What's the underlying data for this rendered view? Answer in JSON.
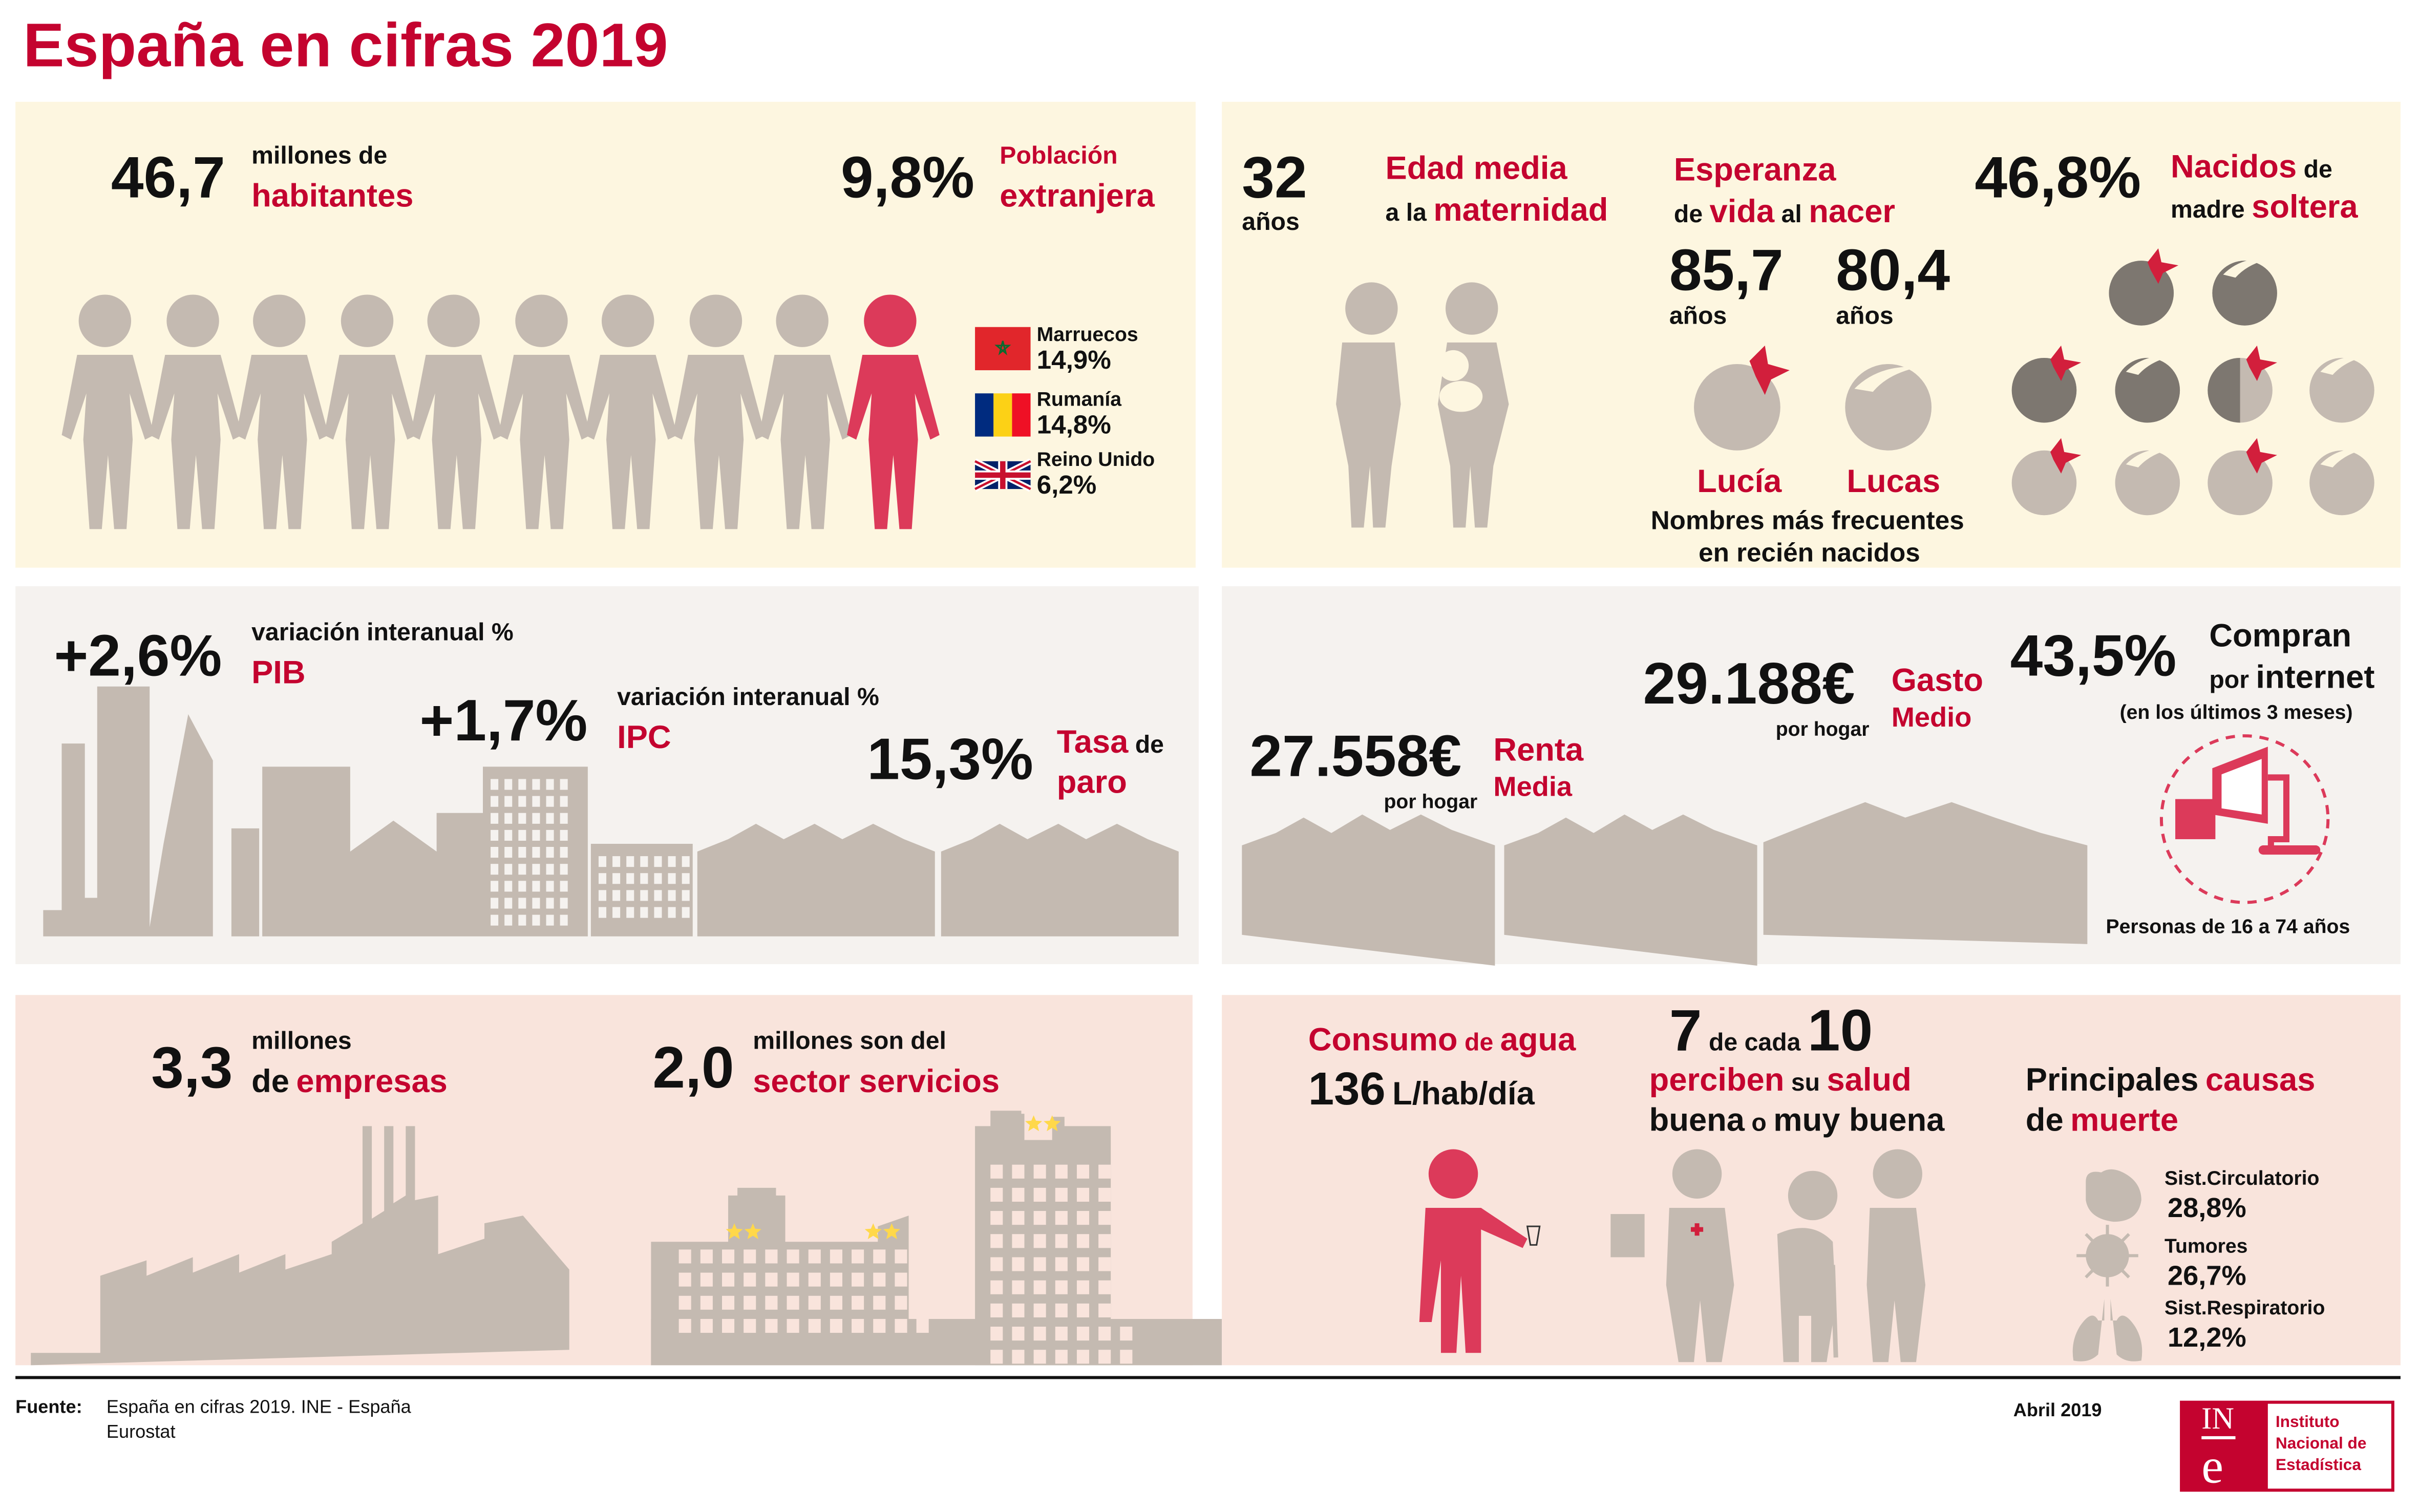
{
  "title": "España en cifras 2019",
  "colors": {
    "accent": "#c4032f",
    "highlight_person": "#dc3a5a",
    "silhouette": "#c4bab1",
    "panel_cream": "#fdf6e0",
    "panel_grey": "#f5f2ef",
    "panel_pink": "#f9e4dc"
  },
  "population": {
    "value": "46,7",
    "unit_line1": "millones de",
    "unit_line2": "habitantes",
    "people_icons": 10,
    "highlighted_icons": 1
  },
  "foreign": {
    "value": "9,8%",
    "label_line1": "Población",
    "label_line2": "extranjera",
    "countries": [
      {
        "name": "Marruecos",
        "value": "14,9%",
        "flag": "morocco-flag"
      },
      {
        "name": "Rumanía",
        "value": "14,8%",
        "flag": "romania-flag"
      },
      {
        "name": "Reino Unido",
        "value": "6,2%",
        "flag": "uk-flag"
      }
    ]
  },
  "maternity": {
    "value": "32",
    "unit": "años",
    "label_line1": "Edad media",
    "label_pre": "a la",
    "label_line2": "maternidad"
  },
  "life_expectancy": {
    "label1": "Esperanza",
    "label2a": "de",
    "label2b": "vida",
    "label2c": "al",
    "label2d": "nacer",
    "women": "85,7",
    "men": "80,4",
    "unit": "años"
  },
  "names": {
    "girl": "Lucía",
    "boy": "Lucas",
    "caption1": "Nombres más frecuentes",
    "caption2": "en recién nacidos"
  },
  "single_mother": {
    "value": "46,8%",
    "label1": "Nacidos",
    "label1b": "de",
    "label2a": "madre",
    "label2b": "soltera",
    "percent": 46.8
  },
  "gdp": {
    "value": "+2,6%",
    "label": "variación interanual %",
    "name": "PIB"
  },
  "cpi": {
    "value": "+1,7%",
    "label": "variación interanual %",
    "name": "IPC"
  },
  "unemployment": {
    "value": "15,3%",
    "label1": "Tasa",
    "label1b": "de",
    "label2": "paro"
  },
  "spending": {
    "value": "29.188€",
    "sub": "por hogar",
    "label1": "Gasto",
    "label2": "Medio"
  },
  "income": {
    "value": "27.558€",
    "sub": "por hogar",
    "label1": "Renta",
    "label2": "Media"
  },
  "internet": {
    "value": "43,5%",
    "label1": "Compran",
    "label2a": "por",
    "label2b": "internet",
    "note": "(en los últimos 3 meses)",
    "caption": "Personas de 16 a 74 años"
  },
  "companies": {
    "value": "3,3",
    "label1": "millones",
    "label2a": "de",
    "label2b": "empresas"
  },
  "services": {
    "value": "2,0",
    "label1": "millones son del",
    "label2": "sector servicios"
  },
  "water": {
    "label_a": "Consumo",
    "label_b": "de",
    "label_c": "agua",
    "value": "136",
    "unit": "L/hab/día"
  },
  "health": {
    "n": "7",
    "mid": "de cada",
    "d": "10",
    "l2a": "perciben",
    "l2b": "su",
    "l2c": "salud",
    "l3a": "buena",
    "l3b": "o",
    "l3c": "muy buena"
  },
  "death": {
    "l1a": "Principales",
    "l1b": "causas",
    "l2a": "de",
    "l2b": "muerte",
    "causes": [
      {
        "name": "Sist.Circulatorio",
        "value": "28,8%",
        "icon": "heart-icon"
      },
      {
        "name": "Tumores",
        "value": "26,7%",
        "icon": "tumor-icon"
      },
      {
        "name": "Sist.Respiratorio",
        "value": "12,2%",
        "icon": "lungs-icon"
      }
    ]
  },
  "footer": {
    "source_label": "Fuente:",
    "source1": "España en cifras 2019. INE - España",
    "source2": "Eurostat",
    "date": "Abril 2019",
    "logo": {
      "mark_top": "IN",
      "mark_bottom": "e",
      "line1": "Instituto",
      "line2": "Nacional de",
      "line3": "Estadística"
    }
  }
}
